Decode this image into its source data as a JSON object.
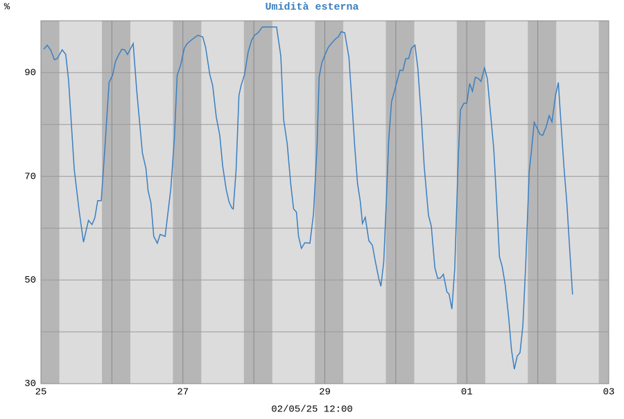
{
  "chart_data": {
    "type": "line",
    "title": "Umidità esterna",
    "y_label": "%",
    "x_label": "02/05/25 12:00",
    "color": "#3a7fc0",
    "x": [
      0.04,
      0.09,
      0.14,
      0.19,
      0.23,
      0.3,
      0.35,
      0.39,
      0.47,
      0.54,
      0.6,
      0.67,
      0.72,
      0.76,
      0.8,
      0.85,
      0.91,
      0.96,
      1.01,
      1.05,
      1.09,
      1.14,
      1.18,
      1.22,
      1.3,
      1.35,
      1.43,
      1.48,
      1.51,
      1.55,
      1.59,
      1.64,
      1.68,
      1.75,
      1.83,
      1.88,
      1.92,
      1.97,
      2.02,
      2.06,
      2.13,
      2.21,
      2.28,
      2.32,
      2.38,
      2.42,
      2.47,
      2.52,
      2.56,
      2.61,
      2.65,
      2.69,
      2.71,
      2.75,
      2.79,
      2.82,
      2.87,
      2.92,
      2.97,
      3.01,
      3.06,
      3.12,
      3.16,
      3.24,
      3.32,
      3.38,
      3.42,
      3.47,
      3.52,
      3.56,
      3.6,
      3.63,
      3.67,
      3.72,
      3.79,
      3.84,
      3.89,
      3.92,
      3.96,
      4.01,
      4.05,
      4.11,
      4.15,
      4.19,
      4.23,
      4.28,
      4.34,
      4.38,
      4.42,
      4.46,
      4.5,
      4.53,
      4.57,
      4.62,
      4.67,
      4.71,
      4.76,
      4.79,
      4.83,
      4.87,
      4.9,
      4.94,
      4.98,
      5.02,
      5.06,
      5.1,
      5.14,
      5.18,
      5.22,
      5.27,
      5.31,
      5.36,
      5.4,
      5.46,
      5.5,
      5.55,
      5.59,
      5.63,
      5.67,
      5.72,
      5.75,
      5.79,
      5.83,
      5.88,
      5.91,
      5.96,
      6.0,
      6.04,
      6.08,
      6.12,
      6.16,
      6.2,
      6.25,
      6.29,
      6.34,
      6.38,
      6.42,
      6.46,
      6.5,
      6.54,
      6.59,
      6.63,
      6.67,
      6.71,
      6.75,
      6.79,
      6.83,
      6.88,
      6.91,
      6.95,
      6.99,
      7.03,
      7.07,
      7.12,
      7.16,
      7.2,
      7.25,
      7.29,
      7.32,
      7.37,
      7.41,
      7.45,
      7.49
    ],
    "values": [
      94.5,
      95.3,
      94.3,
      92.5,
      92.7,
      94.4,
      93.5,
      88.5,
      71.3,
      63.2,
      57.3,
      61.5,
      60.7,
      62,
      65.3,
      65.3,
      77.2,
      88.1,
      89.5,
      92.1,
      93.3,
      94.5,
      94.4,
      93.5,
      95.6,
      86.5,
      74.5,
      71.5,
      67.2,
      64.9,
      58.4,
      57.1,
      58.8,
      58.4,
      67.6,
      77.2,
      89.5,
      91.5,
      94.7,
      95.6,
      96.4,
      97.2,
      96.9,
      94.9,
      89.6,
      87.5,
      81.5,
      77.9,
      72.1,
      67.5,
      65.1,
      63.9,
      63.7,
      71.2,
      85.6,
      87.5,
      89.7,
      94,
      96.3,
      97.2,
      97.7,
      98.8,
      98.8,
      98.8,
      98.8,
      93.2,
      80.9,
      76.3,
      68.5,
      63.7,
      63.1,
      58.4,
      56.1,
      57.2,
      57.1,
      62.7,
      75.7,
      89.2,
      92,
      93.7,
      94.9,
      95.9,
      96.5,
      96.9,
      97.9,
      97.7,
      92.9,
      84.7,
      76,
      68.7,
      65.1,
      60.9,
      62.1,
      57.6,
      56.7,
      53.7,
      50.3,
      48.8,
      53.5,
      66.5,
      77,
      84.4,
      86.4,
      88.5,
      90.5,
      90.4,
      92.7,
      92.7,
      94.7,
      95.3,
      90.9,
      81.3,
      71.9,
      62.5,
      60.4,
      52.4,
      50.3,
      50.4,
      51.1,
      47.7,
      47.3,
      44.4,
      52.1,
      73.6,
      82.8,
      84.1,
      84.1,
      87.9,
      86.4,
      89.1,
      88.9,
      88.3,
      90.9,
      88.8,
      81.3,
      75.3,
      65.3,
      54.5,
      52.5,
      49.2,
      42.8,
      36.5,
      32.8,
      35.3,
      36,
      41.2,
      52.9,
      71.1,
      74.8,
      80.4,
      79.3,
      78.1,
      77.9,
      79.6,
      81.7,
      80.5,
      85.6,
      88.1,
      81.7,
      71.6,
      64.8,
      55.9,
      47.2
    ],
    "xlim": [
      0,
      8
    ],
    "xticks": [
      {
        "value": 0,
        "label": "25"
      },
      {
        "value": 2,
        "label": "27"
      },
      {
        "value": 4,
        "label": "29"
      },
      {
        "value": 6,
        "label": "01"
      },
      {
        "value": 8,
        "label": "03"
      }
    ],
    "xgrid_minor": [
      1,
      3,
      5,
      7
    ],
    "ylim": [
      30,
      100
    ],
    "yticks": [
      30,
      50,
      70,
      90
    ],
    "ygrid_minor": [
      40,
      60,
      80
    ],
    "night_bands": [
      [
        0,
        0.26
      ],
      [
        0.86,
        1.26
      ],
      [
        1.86,
        2.26
      ],
      [
        2.86,
        3.26
      ],
      [
        3.86,
        4.26
      ],
      [
        4.86,
        5.26
      ],
      [
        5.86,
        6.26
      ],
      [
        6.86,
        7.26
      ],
      [
        7.86,
        8
      ]
    ],
    "grid": true
  }
}
